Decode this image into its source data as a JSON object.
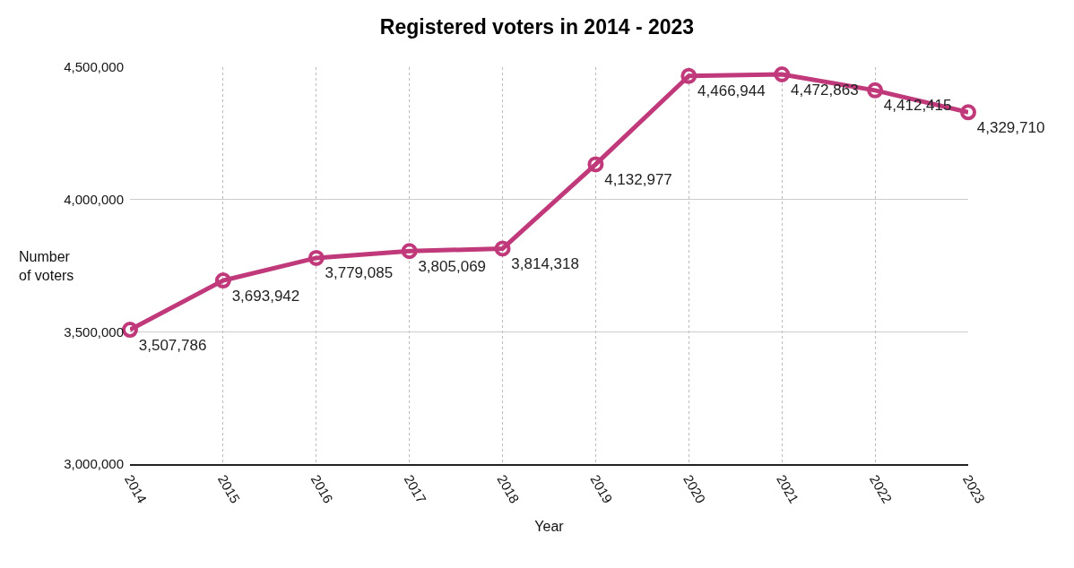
{
  "chart_data": {
    "type": "line",
    "title": "Registered voters in 2014 - 2023",
    "xlabel": "Year",
    "ylabel": "Number of voters",
    "categories": [
      "2014",
      "2015",
      "2016",
      "2017",
      "2018",
      "2019",
      "2020",
      "2021",
      "2022",
      "2023"
    ],
    "series": [
      {
        "color": "#c0397a",
        "values": [
          3507786,
          3693942,
          3779085,
          3805069,
          3814318,
          4132977,
          4466944,
          4472863,
          4412415,
          4329710
        ],
        "value_labels": [
          "3,507,786",
          "3,693,942",
          "3,779,085",
          "3,805,069",
          "3,814,318",
          "4,132,977",
          "4,466,944",
          "4,472,863",
          "4,412,415",
          "4,329,710"
        ]
      }
    ],
    "ylim": [
      3000000,
      4500000
    ],
    "yticks": [
      {
        "value": 3000000,
        "label": "3,000,000"
      },
      {
        "value": 3500000,
        "label": "3,500,000"
      },
      {
        "value": 4000000,
        "label": "4,000,000"
      },
      {
        "value": 4500000,
        "label": "4,500,000"
      }
    ],
    "grid": true,
    "marker": "circle",
    "line_style": "solid"
  }
}
